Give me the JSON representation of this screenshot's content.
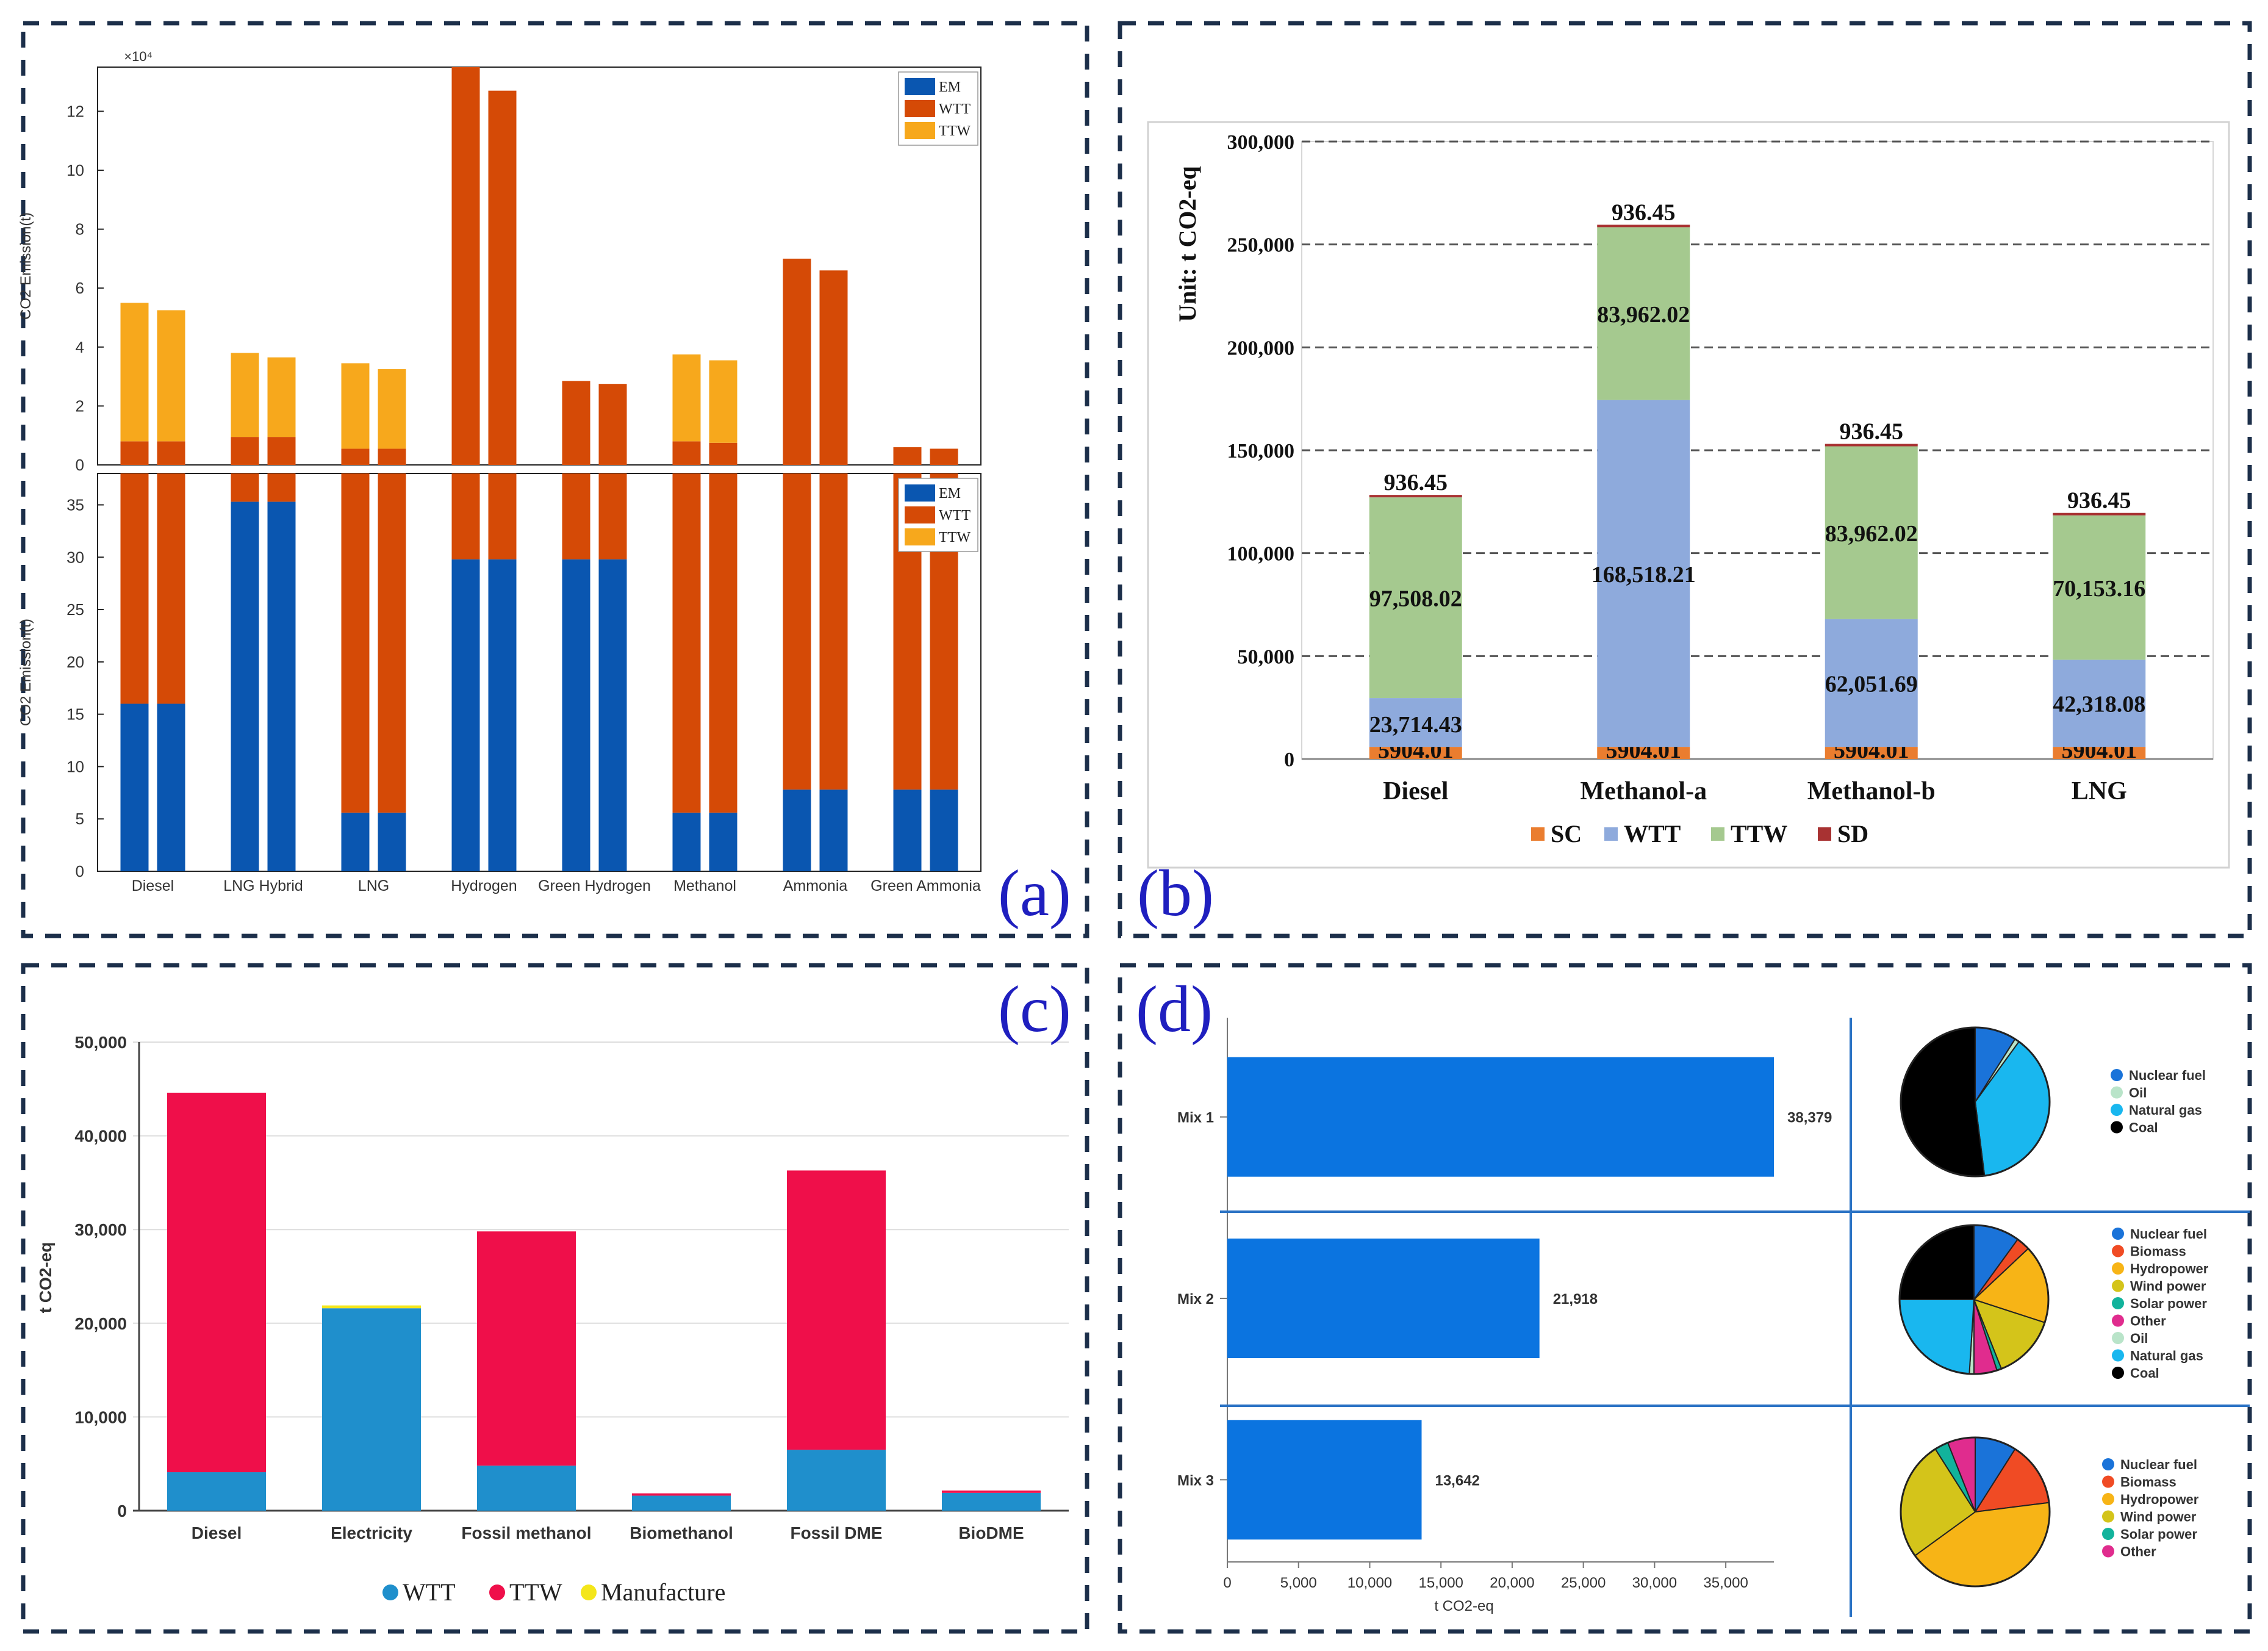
{
  "colors": {
    "frame": "#1c2f4a",
    "panel_label": "#1f1fbf",
    "a_em": "#0a56b0",
    "a_wtt": "#d54a06",
    "a_ttw": "#f7a81c",
    "b_sc": "#ea7d2f",
    "b_wtt": "#8eaadc",
    "b_ttw": "#a5c98f",
    "b_sd": "#a83232",
    "c_wtt": "#1f8fcc",
    "c_ttw": "#ef0f4a",
    "c_manufacture": "#f4e61a",
    "d_bar": "#0b74e0",
    "d_divider": "#2a72c4"
  },
  "panels": {
    "a": {
      "label": "(a)"
    },
    "b": {
      "label": "(b)"
    },
    "c": {
      "label": "(c)"
    },
    "d": {
      "label": "(d)"
    }
  },
  "chart_data": [
    {
      "id": "a-top",
      "type": "bar",
      "stacked": true,
      "scale_label": "×10⁴",
      "ylabel": "CO2 Emission(t)",
      "ylim": [
        0,
        13.5
      ],
      "yticks": [
        0,
        2,
        4,
        6,
        8,
        10,
        12
      ],
      "legend": [
        "EM",
        "WTT",
        "TTW"
      ],
      "categories": [
        "Diesel",
        "LNG Hybrid",
        "LNG",
        "Hydrogen",
        "Green Hydrogen",
        "Methanol",
        "Ammonia",
        "Green Ammonia"
      ],
      "bars_per_category": 2,
      "series": [
        {
          "name": "EM",
          "values": [
            [
              0,
              0
            ],
            [
              0,
              0
            ],
            [
              0,
              0
            ],
            [
              0,
              0
            ],
            [
              0,
              0
            ],
            [
              0,
              0
            ],
            [
              0,
              0
            ],
            [
              0,
              0
            ]
          ]
        },
        {
          "name": "WTT",
          "values": [
            [
              0.8,
              0.8
            ],
            [
              0.95,
              0.95
            ],
            [
              0.55,
              0.55
            ],
            [
              13.5,
              12.7
            ],
            [
              2.85,
              2.75
            ],
            [
              0.8,
              0.75
            ],
            [
              7.0,
              6.6
            ],
            [
              0.6,
              0.55
            ]
          ]
        },
        {
          "name": "TTW",
          "values": [
            [
              4.7,
              4.45
            ],
            [
              2.85,
              2.7
            ],
            [
              2.9,
              2.7
            ],
            [
              0,
              0
            ],
            [
              0,
              0
            ],
            [
              2.95,
              2.8
            ],
            [
              0,
              0
            ],
            [
              0,
              0
            ]
          ]
        }
      ]
    },
    {
      "id": "a-bottom",
      "type": "bar",
      "stacked": true,
      "ylabel": "CO2 Emission(t)",
      "ylim": [
        0,
        38
      ],
      "yticks": [
        0,
        5,
        10,
        15,
        20,
        25,
        30,
        35
      ],
      "legend": [
        "EM",
        "WTT",
        "TTW"
      ],
      "categories": [
        "Diesel",
        "LNG Hybrid",
        "LNG",
        "Hydrogen",
        "Green Hydrogen",
        "Methanol",
        "Ammonia",
        "Green Ammonia"
      ],
      "bars_per_category": 2,
      "series": [
        {
          "name": "EM",
          "values": [
            [
              16,
              16
            ],
            [
              35.3,
              35.3
            ],
            [
              5.6,
              5.6
            ],
            [
              29.8,
              29.8
            ],
            [
              29.8,
              29.8
            ],
            [
              5.6,
              5.6
            ],
            [
              7.8,
              7.8
            ],
            [
              7.8,
              7.8
            ]
          ]
        },
        {
          "name": "WTT",
          "values": [
            [
              22,
              22
            ],
            [
              2.7,
              2.7
            ],
            [
              32.4,
              32.4
            ],
            [
              8.2,
              8.2
            ],
            [
              8.2,
              8.2
            ],
            [
              32.4,
              32.4
            ],
            [
              30.2,
              30.2
            ],
            [
              30.2,
              30.2
            ]
          ]
        },
        {
          "name": "TTW",
          "values": [
            [
              0,
              0
            ],
            [
              0,
              0
            ],
            [
              0,
              0
            ],
            [
              0,
              0
            ],
            [
              0,
              0
            ],
            [
              0,
              0
            ],
            [
              0,
              0
            ],
            [
              0,
              0
            ]
          ]
        }
      ]
    },
    {
      "id": "b",
      "type": "bar",
      "stacked": true,
      "ylabel": "Unit: t CO2-eq",
      "ylim": [
        0,
        300000
      ],
      "yticks": [
        0,
        50000,
        100000,
        150000,
        200000,
        250000,
        300000
      ],
      "ytick_labels": [
        "0",
        "50,000",
        "100,000",
        "150,000",
        "200,000",
        "250,000",
        "300,000"
      ],
      "categories": [
        "Diesel",
        "Methanol-a",
        "Methanol-b",
        "LNG"
      ],
      "series": [
        {
          "name": "SC",
          "values": [
            5904.01,
            5904.01,
            5904.01,
            5904.01
          ],
          "labels": [
            "5904.01",
            "5904.01",
            "5904.01",
            "5904.01"
          ]
        },
        {
          "name": "WTT",
          "values": [
            23714.43,
            168518.21,
            62051.69,
            42318.08
          ],
          "labels": [
            "23,714.43",
            "168,518.21",
            "62,051.69",
            "42,318.08"
          ]
        },
        {
          "name": "TTW",
          "values": [
            97508.02,
            83962.02,
            83962.02,
            70153.16
          ],
          "labels": [
            "97,508.02",
            "83,962.02",
            "83,962.02",
            "70,153.16"
          ]
        },
        {
          "name": "SD",
          "values": [
            936.45,
            936.45,
            936.45,
            936.45
          ],
          "labels": [
            "936.45",
            "936.45",
            "936.45",
            "936.45"
          ]
        }
      ]
    },
    {
      "id": "c",
      "type": "bar",
      "stacked": true,
      "ylabel": "t CO2-eq",
      "ylim": [
        0,
        50000
      ],
      "yticks": [
        0,
        10000,
        20000,
        30000,
        40000,
        50000
      ],
      "ytick_labels": [
        "0",
        "10,000",
        "20,000",
        "30,000",
        "40,000",
        "50,000"
      ],
      "categories": [
        "Diesel",
        "Electricity",
        "Fossil methanol",
        "Biomethanol",
        "Fossil DME",
        "BioDME"
      ],
      "series": [
        {
          "name": "WTT",
          "values": [
            4100,
            21600,
            4800,
            1600,
            6500,
            1900
          ]
        },
        {
          "name": "TTW",
          "values": [
            40500,
            0,
            25000,
            250,
            29800,
            250
          ]
        },
        {
          "name": "Manufacture",
          "values": [
            0,
            300,
            0,
            0,
            0,
            0
          ]
        }
      ]
    },
    {
      "id": "d-bars",
      "type": "bar",
      "orientation": "horizontal",
      "xlabel": "t CO2-eq",
      "xlim": [
        0,
        38379
      ],
      "xticks": [
        0,
        5000,
        10000,
        15000,
        20000,
        25000,
        30000,
        35000
      ],
      "xtick_labels": [
        "0",
        "5,000",
        "10,000",
        "15,000",
        "20,000",
        "25,000",
        "30,000",
        "35,000"
      ],
      "categories": [
        "Mix 1",
        "Mix 2",
        "Mix 3"
      ],
      "values": [
        38379,
        21918,
        13642
      ],
      "value_labels": [
        "38,379",
        "21,918",
        "13,642"
      ]
    },
    {
      "id": "d-pie-1",
      "type": "pie",
      "slices": [
        {
          "name": "Nuclear fuel",
          "value": 9,
          "color": "#1a73d9"
        },
        {
          "name": "Oil",
          "value": 1,
          "color": "#b9e4c9"
        },
        {
          "name": "Natural gas",
          "value": 38,
          "color": "#19b7ef"
        },
        {
          "name": "Coal",
          "value": 52,
          "color": "#000000"
        }
      ]
    },
    {
      "id": "d-pie-2",
      "type": "pie",
      "slices": [
        {
          "name": "Nuclear fuel",
          "value": 10,
          "color": "#1a73d9"
        },
        {
          "name": "Biomass",
          "value": 3,
          "color": "#f04b24"
        },
        {
          "name": "Hydropower",
          "value": 17,
          "color": "#f7b416"
        },
        {
          "name": "Wind power",
          "value": 14,
          "color": "#d4c41a"
        },
        {
          "name": "Solar power",
          "value": 1,
          "color": "#12b39c"
        },
        {
          "name": "Other",
          "value": 5,
          "color": "#e02c8e"
        },
        {
          "name": "Oil",
          "value": 1,
          "color": "#b9e4c9"
        },
        {
          "name": "Natural gas",
          "value": 24,
          "color": "#19b7ef"
        },
        {
          "name": "Coal",
          "value": 25,
          "color": "#000000"
        }
      ]
    },
    {
      "id": "d-pie-3",
      "type": "pie",
      "slices": [
        {
          "name": "Nuclear fuel",
          "value": 9,
          "color": "#1a73d9"
        },
        {
          "name": "Biomass",
          "value": 14,
          "color": "#f04b24"
        },
        {
          "name": "Hydropower",
          "value": 42,
          "color": "#f7b416"
        },
        {
          "name": "Wind power",
          "value": 26,
          "color": "#d4c41a"
        },
        {
          "name": "Solar power",
          "value": 3,
          "color": "#12b39c"
        },
        {
          "name": "Other",
          "value": 6,
          "color": "#e02c8e"
        }
      ]
    }
  ]
}
